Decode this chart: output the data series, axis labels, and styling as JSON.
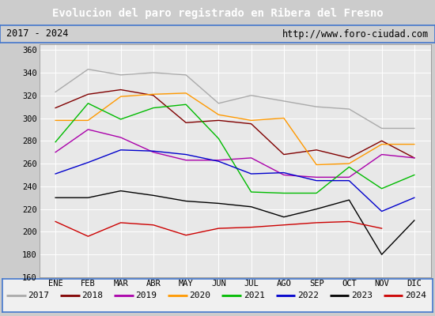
{
  "title": "Evolucion del paro registrado en Ribera del Fresno",
  "subtitle_left": "2017 - 2024",
  "subtitle_right": "http://www.foro-ciudad.com",
  "months": [
    "ENE",
    "FEB",
    "MAR",
    "ABR",
    "MAY",
    "JUN",
    "JUL",
    "AGO",
    "SEP",
    "OCT",
    "NOV",
    "DIC"
  ],
  "series": {
    "2017": {
      "color": "#aaaaaa",
      "data": [
        323,
        343,
        338,
        340,
        338,
        313,
        320,
        315,
        310,
        308,
        291,
        291
      ]
    },
    "2018": {
      "color": "#800000",
      "data": [
        309,
        321,
        325,
        320,
        296,
        298,
        295,
        268,
        272,
        265,
        280,
        265
      ]
    },
    "2019": {
      "color": "#aa00aa",
      "data": [
        270,
        290,
        283,
        270,
        263,
        263,
        265,
        250,
        248,
        248,
        268,
        265
      ]
    },
    "2020": {
      "color": "#ff9900",
      "data": [
        298,
        298,
        319,
        321,
        322,
        303,
        298,
        300,
        259,
        260,
        277,
        277
      ]
    },
    "2021": {
      "color": "#00bb00",
      "data": [
        279,
        313,
        299,
        309,
        312,
        282,
        235,
        234,
        234,
        257,
        238,
        250
      ]
    },
    "2022": {
      "color": "#0000cc",
      "data": [
        251,
        261,
        272,
        271,
        268,
        262,
        251,
        252,
        245,
        245,
        218,
        230
      ]
    },
    "2023": {
      "color": "#000000",
      "data": [
        230,
        230,
        236,
        232,
        227,
        225,
        222,
        213,
        220,
        228,
        180,
        210
      ]
    },
    "2024": {
      "color": "#cc0000",
      "data": [
        209,
        196,
        208,
        206,
        197,
        203,
        204,
        206,
        208,
        209,
        203,
        null
      ]
    }
  },
  "ylim": [
    160,
    365
  ],
  "yticks": [
    160,
    180,
    200,
    220,
    240,
    260,
    280,
    300,
    320,
    340,
    360
  ],
  "title_bg": "#4477cc",
  "title_color": "white",
  "plot_bg": "#e8e8e8",
  "grid_color": "white",
  "subtitle_bg": "#d0d0d0",
  "legend_bg": "#f0f0f0",
  "legend_border": "#4477cc"
}
